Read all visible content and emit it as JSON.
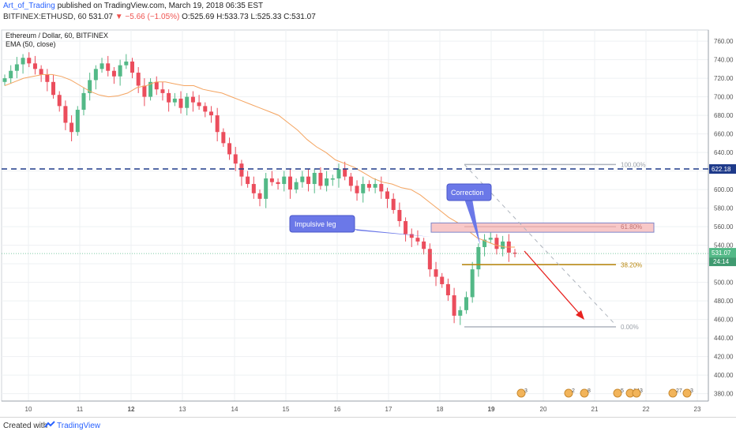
{
  "publisher": {
    "user": "Art_of_Trading",
    "text": "published on TradingView.com, March 19, 2018 06:35 EST"
  },
  "ticker_line": {
    "symbol": "BITFINEX:ETHUSD, 60",
    "last": "531.07",
    "arrow": "▼",
    "change": "−5.66 (−1.05%)",
    "open": "O:525.69",
    "high": "H:533.73",
    "low": "L:525.33",
    "close": "C:531.07"
  },
  "chart_title": "Ethereum / Dollar, 60, BITFINEX",
  "indicator": "EMA (50, close)",
  "colors": {
    "up": "#53b987",
    "down": "#eb4d5c",
    "ema": "#f4a460",
    "support_line": "#1e3a8a",
    "fib_range": "#f8c8c8",
    "fib_mid": "#b8860b",
    "callout": "#6b78e8",
    "arrow": "#e8221f"
  },
  "price_scale": [
    "760.00",
    "740.00",
    "720.00",
    "700.00",
    "680.00",
    "660.00",
    "640.00",
    "620.00",
    "600.00",
    "580.00",
    "560.00",
    "540.00",
    "520.00",
    "500.00",
    "480.00",
    "460.00",
    "440.00",
    "420.00",
    "400.00",
    "380.00"
  ],
  "time_scale": [
    "10",
    "11",
    "12",
    "13",
    "14",
    "15",
    "16",
    "17",
    "18",
    "19",
    "20",
    "21",
    "22",
    "23"
  ],
  "price_labels": {
    "support": "622.18",
    "last": "531.07",
    "countdown": "24:14"
  },
  "fib": {
    "levels": [
      "100.00%",
      "61.80%",
      "38.20%",
      "0.00%"
    ]
  },
  "annotations": {
    "impulsive": "Impulsive leg",
    "correction": "Correction"
  },
  "events": [
    "3",
    "2",
    "8",
    "5",
    "14",
    "3",
    "27",
    "3"
  ],
  "footer": {
    "created": "Created with",
    "brand": "TradingView"
  },
  "chart_data": {
    "type": "candlestick",
    "title": "Ethereum / Dollar, 60, BITFINEX",
    "indicator": "EMA (50, close)",
    "ylim": [
      372,
      772
    ],
    "y_axis_position": "right",
    "grid": true,
    "x_ticks": [
      "10",
      "11",
      "12",
      "13",
      "14",
      "15",
      "16",
      "17",
      "18",
      "19",
      "20",
      "21",
      "22",
      "23"
    ],
    "horizontal_lines": [
      {
        "price": 622.18,
        "style": "dashed"
      }
    ],
    "last_price": 531.07,
    "fibonacci": [
      {
        "level": "100.00%",
        "price": 627
      },
      {
        "level": "61.80%",
        "price": 560
      },
      {
        "level": "38.20%",
        "price": 519
      },
      {
        "level": "0.00%",
        "price": 452
      }
    ],
    "support_zone": [
      554,
      564
    ],
    "candles_approx_close": [
      720,
      728,
      735,
      742,
      736,
      730,
      724,
      716,
      702,
      690,
      672,
      662,
      686,
      704,
      718,
      730,
      736,
      728,
      722,
      734,
      738,
      726,
      712,
      700,
      716,
      708,
      704,
      694,
      698,
      688,
      700,
      694,
      690,
      684,
      680,
      662,
      650,
      638,
      628,
      614,
      606,
      596,
      590,
      612,
      608,
      606,
      614,
      600,
      608,
      614,
      606,
      618,
      604,
      612,
      612,
      622,
      614,
      604,
      596,
      606,
      602,
      606,
      598,
      590,
      578,
      566,
      552,
      548,
      544,
      536,
      514,
      506,
      498,
      486,
      464,
      470,
      484,
      514,
      538,
      546,
      548,
      536,
      544,
      532,
      531
    ],
    "ema_approx": [
      712,
      716,
      720,
      722,
      724,
      724,
      722,
      718,
      712,
      706,
      702,
      700,
      701,
      704,
      710,
      712,
      716,
      716,
      714,
      712,
      712,
      708,
      706,
      704,
      700,
      696,
      692,
      688,
      684,
      680,
      672,
      664,
      654,
      646,
      640,
      632,
      628,
      624,
      618,
      612,
      608,
      606,
      602,
      600,
      594,
      586,
      578,
      570,
      564,
      556,
      548,
      544,
      540,
      538,
      538
    ]
  }
}
